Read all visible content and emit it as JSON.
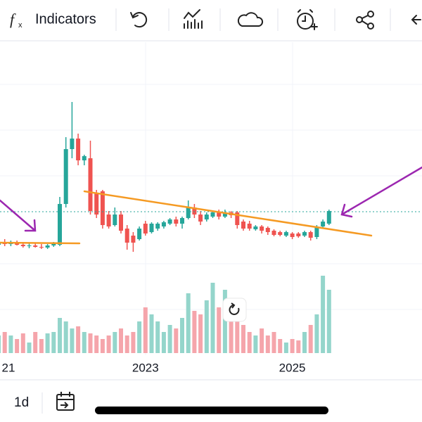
{
  "toolbar": {
    "indicators": "Indicators"
  },
  "timeframe": "1d",
  "chart_data": {
    "type": "candlestick",
    "categories": [
      "21",
      null,
      null,
      null,
      null,
      null,
      null,
      null,
      null,
      null,
      null,
      null,
      null,
      null,
      null,
      null,
      null,
      null,
      null,
      null,
      null,
      null,
      null,
      null,
      "2023",
      null,
      null,
      null,
      null,
      null,
      null,
      null,
      null,
      null,
      null,
      null,
      null,
      null,
      null,
      null,
      null,
      null,
      null,
      null,
      null,
      null,
      null,
      null,
      "2025",
      null,
      null,
      null,
      null,
      null,
      null
    ],
    "open": [
      32,
      36,
      33,
      35,
      32,
      30,
      31,
      29,
      28,
      31,
      32,
      90,
      168,
      183,
      152,
      155,
      105,
      108,
      75,
      60,
      75,
      55,
      45,
      40,
      62,
      50,
      55,
      58,
      62,
      68,
      62,
      70,
      85,
      75,
      68,
      72,
      78,
      72,
      78,
      78,
      65,
      62,
      54,
      58,
      56,
      52,
      50,
      45,
      48,
      48,
      45,
      50,
      43,
      58,
      62
    ],
    "high": [
      40,
      40,
      38,
      38,
      36,
      34,
      35,
      33,
      33,
      36,
      100,
      185,
      235,
      190,
      160,
      180,
      110,
      110,
      80,
      85,
      80,
      60,
      50,
      58,
      66,
      64,
      64,
      66,
      70,
      72,
      72,
      95,
      90,
      80,
      78,
      80,
      82,
      82,
      80,
      80,
      68,
      66,
      60,
      60,
      58,
      54,
      52,
      52,
      50,
      50,
      52,
      52,
      60,
      68,
      82
    ],
    "low": [
      28,
      30,
      30,
      31,
      28,
      27,
      28,
      26,
      26,
      29,
      30,
      85,
      155,
      145,
      145,
      75,
      70,
      55,
      55,
      58,
      48,
      25,
      22,
      38,
      45,
      48,
      52,
      55,
      60,
      58,
      55,
      68,
      70,
      60,
      65,
      70,
      68,
      70,
      70,
      55,
      52,
      52,
      52,
      48,
      46,
      44,
      44,
      43,
      40,
      42,
      43,
      38,
      40,
      55,
      60
    ],
    "close": [
      36,
      33,
      35,
      32,
      30,
      31,
      29,
      28,
      31,
      34,
      90,
      168,
      183,
      152,
      158,
      80,
      75,
      60,
      58,
      75,
      52,
      35,
      35,
      55,
      48,
      62,
      62,
      64,
      68,
      62,
      70,
      85,
      75,
      65,
      75,
      78,
      72,
      78,
      74,
      60,
      55,
      55,
      58,
      52,
      50,
      46,
      46,
      50,
      43,
      44,
      50,
      42,
      58,
      65,
      80
    ],
    "volume": [
      25,
      30,
      25,
      20,
      28,
      15,
      30,
      20,
      28,
      30,
      50,
      45,
      35,
      38,
      30,
      28,
      25,
      20,
      25,
      30,
      35,
      25,
      30,
      45,
      65,
      55,
      45,
      30,
      40,
      35,
      50,
      85,
      60,
      55,
      75,
      100,
      65,
      90,
      50,
      55,
      40,
      30,
      25,
      35,
      25,
      30,
      20,
      15,
      20,
      18,
      30,
      40,
      55,
      110,
      90
    ],
    "ylim": [
      0,
      320
    ],
    "vlim": [
      0,
      150
    ],
    "up_color": "#26a69a",
    "down_color": "#ef5350",
    "volume_up_color": "#94d5cb",
    "volume_down_color": "#f5a5ab"
  }
}
